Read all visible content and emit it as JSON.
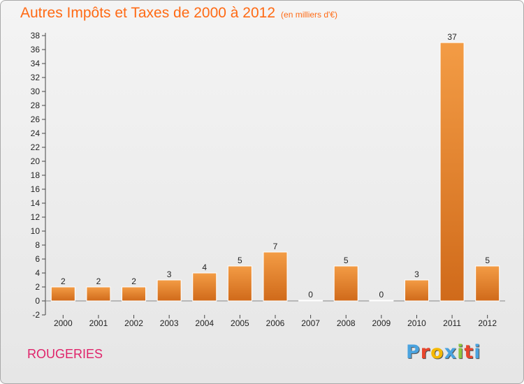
{
  "chart_data": {
    "type": "bar",
    "title": "Autres Impôts et Taxes de 2000 à 2012",
    "subtitle": "(en milliers d'€)",
    "categories": [
      "2000",
      "2001",
      "2002",
      "2003",
      "2004",
      "2005",
      "2006",
      "2007",
      "2008",
      "2009",
      "2010",
      "2011",
      "2012"
    ],
    "values": [
      2,
      2,
      2,
      3,
      4,
      5,
      7,
      0,
      5,
      0,
      3,
      37,
      5
    ],
    "data_labels": [
      "2",
      "2",
      "2",
      "3",
      "4",
      "5",
      "7",
      "0",
      "5",
      "0",
      "3",
      "37",
      "5"
    ],
    "ylim": [
      -2,
      38
    ],
    "yticks": [
      -2,
      0,
      2,
      4,
      6,
      8,
      10,
      12,
      14,
      16,
      18,
      20,
      22,
      24,
      26,
      28,
      30,
      32,
      34,
      36,
      38
    ],
    "grid": false,
    "bar_color": "#f39c45",
    "bar_color_dark": "#d06a1a"
  },
  "footer": {
    "commune": "ROUGERIES",
    "logo_letters": [
      "P",
      "r",
      "o",
      "x",
      "i",
      "t",
      "i"
    ],
    "logo_colors": [
      "#4aa3df",
      "#e8452c",
      "#f5b800",
      "#4aa3df",
      "#8cc63f",
      "#e8452c",
      "#4aa3df"
    ]
  }
}
